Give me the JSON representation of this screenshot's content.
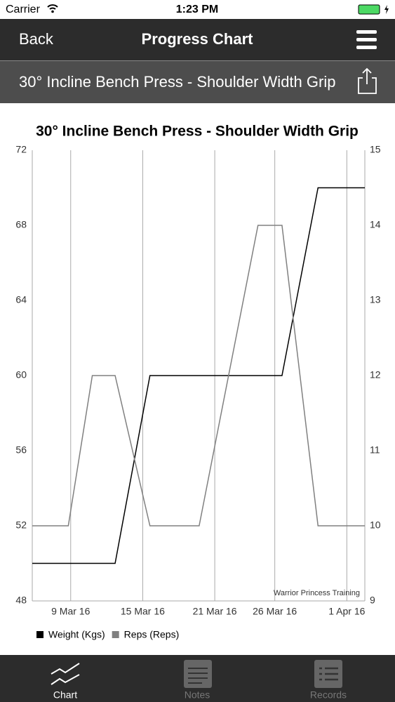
{
  "status_bar": {
    "carrier": "Carrier",
    "time": "1:23 PM"
  },
  "nav_bar": {
    "back": "Back",
    "title": "Progress Chart"
  },
  "exercise_bar": {
    "title": "30° Incline Bench Press - Shoulder Width Grip"
  },
  "chart_data": {
    "type": "line",
    "title": "30° Incline Bench Press - Shoulder Width Grip",
    "x": [
      5.8,
      8.8,
      10.8,
      12.7,
      15.6,
      19.7,
      24.6,
      26.6,
      29.6,
      33.5
    ],
    "xlim": [
      5.8,
      33.5
    ],
    "xticks": [
      {
        "value": 9,
        "label": "9 Mar 16"
      },
      {
        "value": 15,
        "label": "15 Mar 16"
      },
      {
        "value": 21,
        "label": "21 Mar 16"
      },
      {
        "value": 26,
        "label": "26 Mar 16"
      },
      {
        "value": 32,
        "label": "1 Apr 16"
      }
    ],
    "ylim": [
      48,
      72
    ],
    "yticks": [
      48,
      52,
      56,
      60,
      64,
      68,
      72
    ],
    "y2lim": [
      9,
      15
    ],
    "y2ticks": [
      9,
      10,
      11,
      12,
      13,
      14,
      15
    ],
    "series": [
      {
        "name": "Weight (Kgs)",
        "color": "#000000",
        "values": [
          50,
          50,
          50,
          50,
          60,
          60,
          60,
          60,
          70,
          70
        ]
      },
      {
        "name": "Reps (Reps)",
        "color": "#808080",
        "axis": "y2",
        "values": [
          10,
          10,
          12,
          12,
          10,
          10,
          14,
          14,
          10,
          10
        ]
      }
    ],
    "annotation": "Warrior Princess Training",
    "grid": "x"
  },
  "tab_bar": {
    "tabs": [
      {
        "label": "Chart",
        "selected": true
      },
      {
        "label": "Notes",
        "selected": false
      },
      {
        "label": "Records",
        "selected": false
      }
    ]
  }
}
